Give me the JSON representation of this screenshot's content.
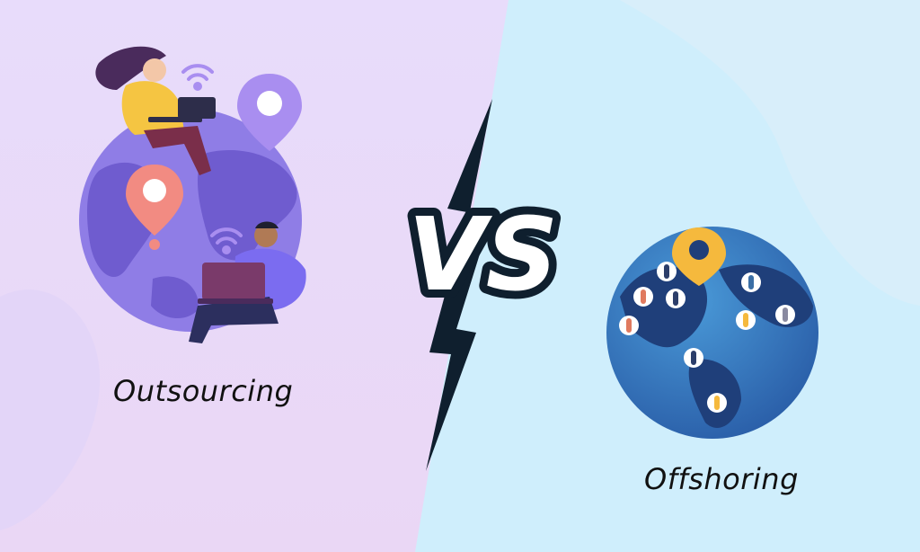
{
  "left": {
    "caption": "Outsourcing",
    "background": "#e6d9fb",
    "globe_color": "#8f7de6",
    "land_color": "#6f5ccf",
    "pin_purple": "#a98ef0",
    "pin_coral": "#f28b82"
  },
  "right": {
    "caption": "Offshoring",
    "background": "#cfeefc",
    "globe_color": "#3a7ec4",
    "land_color": "#1f3f7a",
    "pin_color": "#f5b93d"
  },
  "vs": {
    "text": "VS",
    "fill": "#ffffff",
    "outline": "#0f1f2e"
  }
}
